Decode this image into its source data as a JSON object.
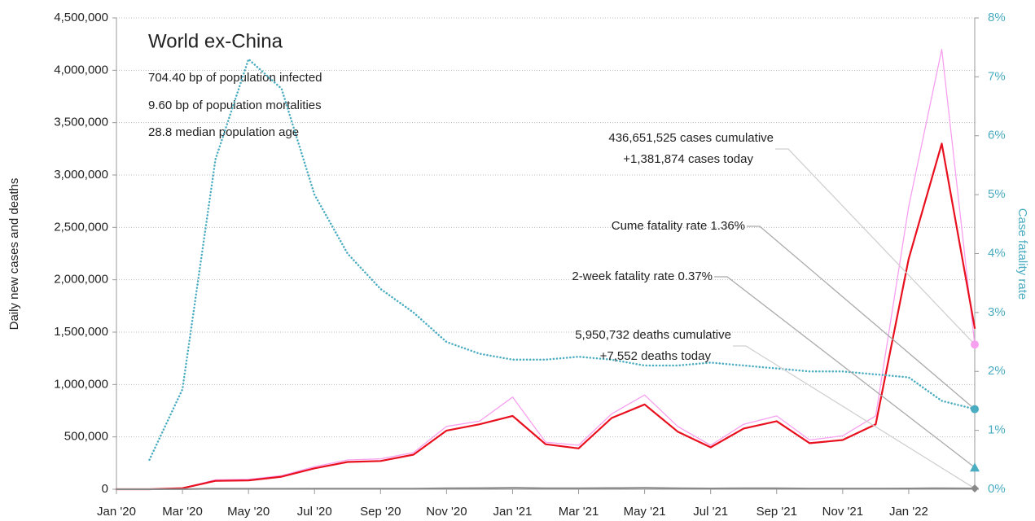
{
  "chart_data": {
    "type": "line",
    "title": "World ex-China",
    "stats": [
      "704.40 bp of population infected",
      "9.60 bp of population mortalities",
      "28.8 median population age"
    ],
    "ylabel": "Daily new cases and deaths",
    "y2label": "Case fatality rate",
    "x": [
      "2020-01",
      "2020-02",
      "2020-03",
      "2020-04",
      "2020-05",
      "2020-06",
      "2020-07",
      "2020-08",
      "2020-09",
      "2020-10",
      "2020-11",
      "2020-12",
      "2021-01",
      "2021-02",
      "2021-03",
      "2021-04",
      "2021-05",
      "2021-06",
      "2021-07",
      "2021-08",
      "2021-09",
      "2021-10",
      "2021-11",
      "2021-12",
      "2022-01",
      "2022-02",
      "2022-03"
    ],
    "xlim": [
      "2020-01",
      "2022-03"
    ],
    "xticks": [
      {
        "value": "2020-01",
        "label": "Jan '20"
      },
      {
        "value": "2020-03",
        "label": "Mar '20"
      },
      {
        "value": "2020-05",
        "label": "May '20"
      },
      {
        "value": "2020-07",
        "label": "Jul '20"
      },
      {
        "value": "2020-09",
        "label": "Sep '20"
      },
      {
        "value": "2020-11",
        "label": "Nov '20"
      },
      {
        "value": "2021-01",
        "label": "Jan '21"
      },
      {
        "value": "2021-03",
        "label": "Mar '21"
      },
      {
        "value": "2021-05",
        "label": "May '21"
      },
      {
        "value": "2021-07",
        "label": "Jul '21"
      },
      {
        "value": "2021-09",
        "label": "Sep '21"
      },
      {
        "value": "2021-11",
        "label": "Nov '21"
      },
      {
        "value": "2022-01",
        "label": "Jan '22"
      }
    ],
    "ylim": [
      0,
      4500000
    ],
    "yticks": [
      0,
      {
        "value": 500000,
        "label": "500,000"
      },
      {
        "value": 1000000,
        "label": "1,000,000"
      },
      {
        "value": 1500000,
        "label": "1,500,000"
      },
      {
        "value": 2000000,
        "label": "2,000,000"
      },
      {
        "value": 2500000,
        "label": "2,500,000"
      },
      {
        "value": 3000000,
        "label": "3,000,000"
      },
      {
        "value": 3500000,
        "label": "3,500,000"
      },
      {
        "value": 4000000,
        "label": "4,000,000"
      },
      {
        "value": 4500000,
        "label": "4,500,000"
      }
    ],
    "y2lim": [
      0,
      8
    ],
    "y2ticks": [
      {
        "value": 0,
        "label": "0%"
      },
      {
        "value": 1,
        "label": "1%"
      },
      {
        "value": 2,
        "label": "2%"
      },
      {
        "value": 3,
        "label": "3%"
      },
      {
        "value": 4,
        "label": "4%"
      },
      {
        "value": 5,
        "label": "5%"
      },
      {
        "value": 6,
        "label": "6%"
      },
      {
        "value": 7,
        "label": "7%"
      },
      {
        "value": 8,
        "label": "8%"
      }
    ],
    "grid": true,
    "series": [
      {
        "color": "#f7a0f0",
        "width": 1.3,
        "values": [
          0,
          0,
          12000,
          90000,
          95000,
          130000,
          215000,
          280000,
          290000,
          350000,
          600000,
          650000,
          880000,
          450000,
          420000,
          720000,
          900000,
          600000,
          420000,
          620000,
          700000,
          470000,
          510000,
          700000,
          2700000,
          4200000,
          1381874
        ],
        "end_marker": "circle"
      },
      {
        "color": "#e8101e",
        "width": 2.2,
        "values": [
          0,
          0,
          10000,
          80000,
          85000,
          120000,
          200000,
          260000,
          270000,
          330000,
          560000,
          620000,
          700000,
          430000,
          390000,
          680000,
          810000,
          550000,
          400000,
          580000,
          650000,
          440000,
          470000,
          620000,
          2200000,
          3300000,
          1540000
        ]
      },
      {
        "color": "#888888",
        "width": 2,
        "values": [
          0,
          0,
          500,
          6000,
          5000,
          4500,
          5500,
          6000,
          5500,
          6000,
          9000,
          11000,
          14000,
          10000,
          9000,
          12000,
          13000,
          9000,
          8000,
          9500,
          9000,
          7000,
          7000,
          7000,
          8000,
          10000,
          7552
        ],
        "end_marker": "diamond"
      },
      {
        "color": "#4aacc0",
        "width": 2.5,
        "dotted": true,
        "axis": "y2",
        "values": [
          null,
          0.5,
          1.7,
          5.6,
          7.3,
          6.8,
          5.0,
          4.0,
          3.4,
          3.0,
          2.5,
          2.3,
          2.2,
          2.2,
          2.25,
          2.2,
          2.1,
          2.1,
          2.15,
          2.1,
          2.05,
          2.0,
          2.0,
          1.95,
          1.9,
          1.5,
          1.36
        ],
        "end_marker": "circle"
      }
    ],
    "two_week_fatality_rate": 0.37,
    "two_week_color": "#4aacc0",
    "annotations": [
      {
        "lines": [
          "436,651,525 cases cumulative",
          "+1,381,874 cases today"
        ]
      },
      {
        "lines": [
          "Cume fatality rate 1.36%"
        ]
      },
      {
        "lines": [
          "2-week fatality rate 0.37%"
        ]
      },
      {
        "lines": [
          "5,950,732 deaths cumulative",
          "+7,552 deaths today"
        ]
      }
    ]
  }
}
